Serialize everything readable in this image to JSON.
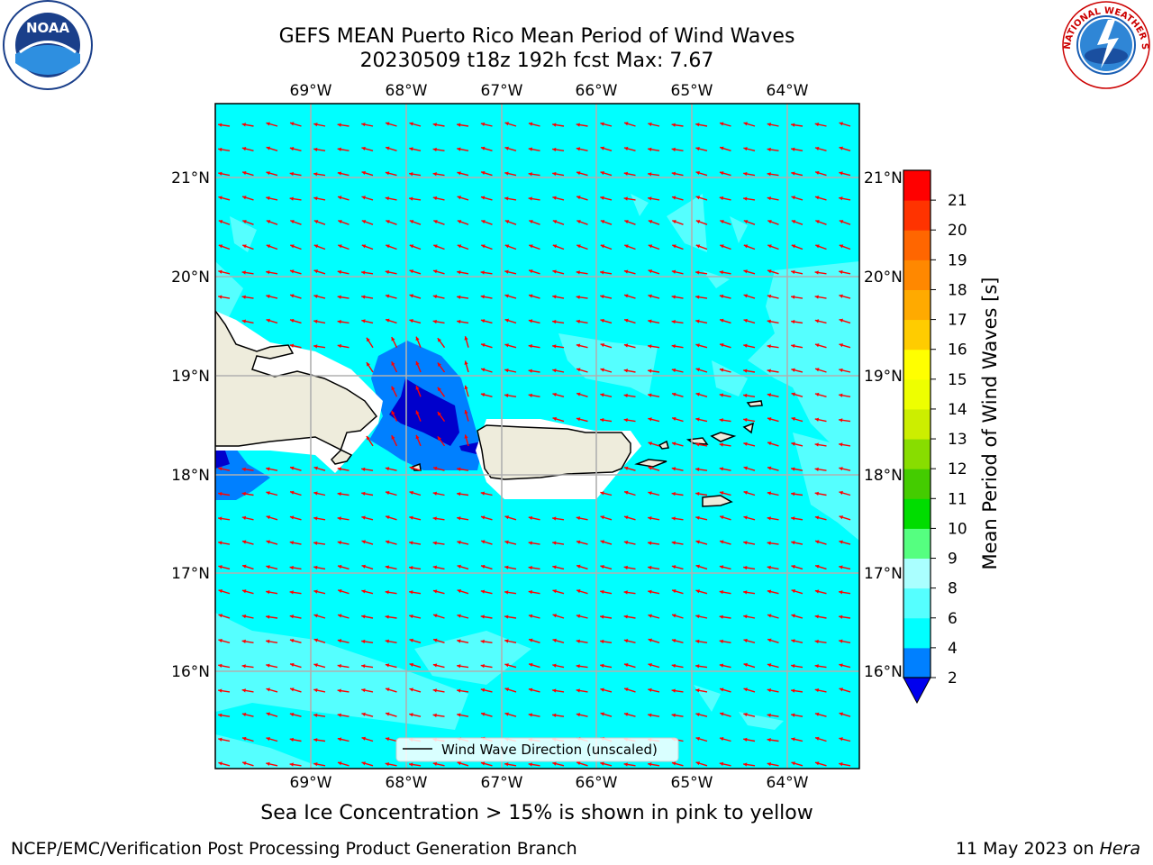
{
  "header": {
    "title_line1": "GEFS MEAN Puerto Rico Mean Period of Wind Waves",
    "title_line2": "20230509 t18z 192h fcst   Max: 7.67"
  },
  "map": {
    "lon_labels": [
      "69°W",
      "68°W",
      "67°W",
      "66°W",
      "65°W",
      "64°W"
    ],
    "lat_labels": [
      "21°N",
      "20°N",
      "19°N",
      "18°N",
      "17°N",
      "16°N"
    ],
    "legend_label": "Wind Wave Direction (unscaled)",
    "colors": {
      "ocean": "#00ffff",
      "light": "#55ffff",
      "mid": "#0080ff",
      "dark": "#0000cc",
      "land": "#eeecdc",
      "arrow": "#ff0000",
      "grid": "#b0b0b0"
    }
  },
  "colorbar": {
    "title": "Mean Period of Wind Waves [s]",
    "ticks": [
      "2",
      "4",
      "6",
      "8",
      "9",
      "10",
      "11",
      "12",
      "13",
      "14",
      "15",
      "16",
      "17",
      "18",
      "19",
      "20",
      "21"
    ],
    "colors": [
      "#0080ff",
      "#00ffff",
      "#55ffff",
      "#aaffff",
      "#55ff80",
      "#00dd00",
      "#44cc00",
      "#88dd00",
      "#ccee00",
      "#eeff00",
      "#ffff00",
      "#ffcc00",
      "#ffaa00",
      "#ff8800",
      "#ff6600",
      "#ff3300",
      "#ff0000"
    ],
    "under_color": "#0000ee"
  },
  "logos": {
    "left": "NOAA",
    "right": "NATIONAL WEATHER SERVICE"
  },
  "footer": {
    "note": "Sea Ice Concentration > 15% is shown in pink to yellow",
    "left": "NCEP/EMC/Verification Post Processing Product Generation Branch",
    "date": "11 May 2023 on",
    "host": "Hera"
  }
}
